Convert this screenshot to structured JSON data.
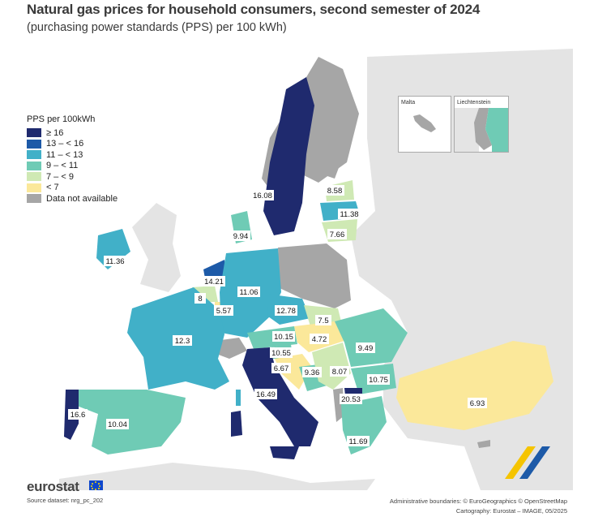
{
  "title": "Natural gas prices for household consumers, second semester of 2024",
  "subtitle": "(purchasing power standards (PPS) per 100 kWh)",
  "legend": {
    "title": "PPS per 100kWh",
    "classes": [
      {
        "label": "≥ 16",
        "color": "#1f2a6e"
      },
      {
        "label": "13 – < 16",
        "color": "#1d5aa8"
      },
      {
        "label": "11 – < 13",
        "color": "#41b0c8"
      },
      {
        "label": "9 – < 11",
        "color": "#6fcbb5"
      },
      {
        "label": "7 – < 9",
        "color": "#cfe9b4"
      },
      {
        "label": "< 7",
        "color": "#fbe89a"
      },
      {
        "label": "Data not available",
        "color": "#a6a6a6"
      }
    ]
  },
  "colors": {
    "non_eu": "#e4e4e4",
    "sea": "#ffffff",
    "na": "#a6a6a6"
  },
  "insets": {
    "malta": "Malta",
    "liechtenstein": "Liechtenstein"
  },
  "values": {
    "sweden": "16.08",
    "latvia": "8.58",
    "lithuania": "11.38",
    "estonia": "7.66",
    "denmark": "9.94",
    "ireland": "11.36",
    "netherlands": "14.21",
    "belgium": "8",
    "luxembourg": "5.57",
    "germany": "11.06",
    "czechia": "12.78",
    "slovakia": "7.5",
    "hungary": "4.72",
    "austria": "10.15",
    "slovenia": "10.55",
    "croatia": "6.67",
    "bosnia": "9.36",
    "serbia": "8.07",
    "romania": "9.49",
    "bulgaria": "10.75",
    "north_macedonia": "20.53",
    "greece": "11.69",
    "turkey": "6.93",
    "italy": "16.49",
    "france": "12.3",
    "spain": "10.04",
    "portugal": "16.6"
  },
  "footer": {
    "logo": "eurostat",
    "source": "Source dataset: nrg_pc_202",
    "boundaries": "Administrative boundaries: © EuroGeographics © OpenStreetMap",
    "cartography": "Cartography: Eurostat – IMAGE, 05/2025"
  }
}
